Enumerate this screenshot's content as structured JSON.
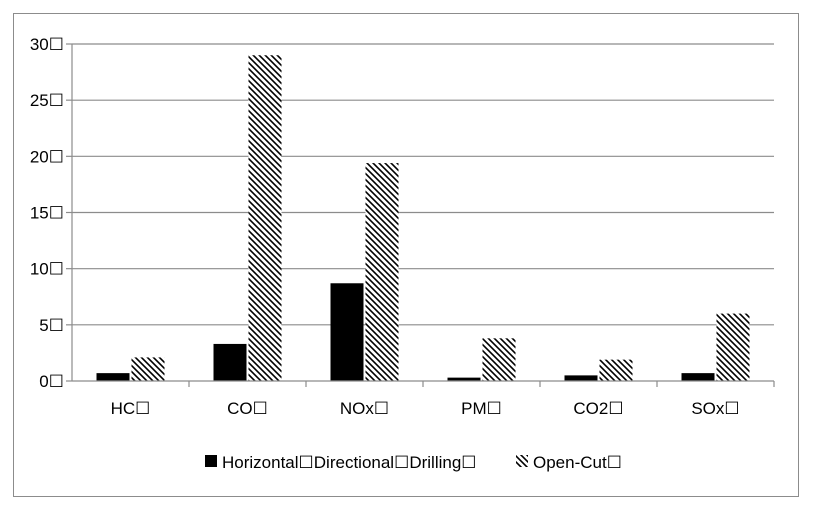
{
  "colors": {
    "series_1_fill": "#000000",
    "series_2_pattern": "diagonal-hatch",
    "gridline": "#8c8c8c",
    "frame_border": "#8c8c8c"
  },
  "chart_data": {
    "type": "bar",
    "title": "",
    "xlabel": "",
    "ylabel": "",
    "categories": [
      "HC",
      "CO",
      "NOx",
      "PM",
      "CO2",
      "SOx"
    ],
    "category_labels": [
      "HC☐",
      "CO☐",
      "NOx☐",
      "PM☐",
      "CO2☐",
      "SOx☐"
    ],
    "yticks": [
      0,
      5,
      10,
      15,
      20,
      25,
      30
    ],
    "ytick_labels": [
      "0☐",
      "5☐",
      "10☐",
      "15☐",
      "20☐",
      "25☐",
      "30☐"
    ],
    "ylim": [
      0,
      30
    ],
    "grid": true,
    "legend_position": "bottom",
    "series": [
      {
        "name": "Horizontal☐Directional☐Drilling☐",
        "pattern": "solid",
        "values": [
          0.7,
          3.3,
          8.7,
          0.3,
          0.5,
          0.7
        ]
      },
      {
        "name": "Open-Cut☐",
        "pattern": "hatch",
        "values": [
          2.1,
          29.0,
          19.4,
          3.8,
          1.9,
          6.0
        ]
      }
    ]
  }
}
